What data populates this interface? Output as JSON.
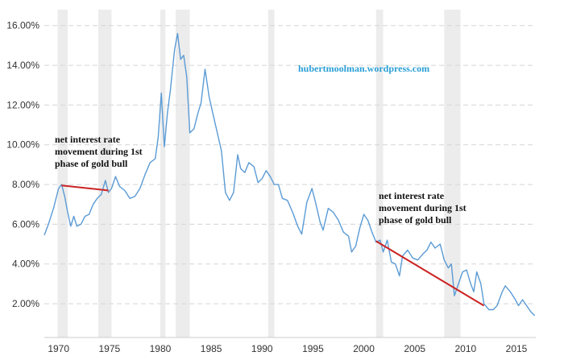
{
  "chart_data": {
    "type": "line",
    "title": "",
    "xlabel": "",
    "ylabel": "",
    "xlim": [
      1968.6,
      2016.9
    ],
    "ylim": [
      0.3,
      16.8
    ],
    "x_ticks": [
      1970,
      1975,
      1980,
      1985,
      1990,
      1995,
      2000,
      2005,
      2010,
      2015
    ],
    "x_tick_labels": [
      "1970",
      "1975",
      "1980",
      "1985",
      "1990",
      "1995",
      "2000",
      "2005",
      "2010",
      "2015"
    ],
    "y_ticks": [
      2,
      4,
      6,
      8,
      10,
      12,
      14,
      16
    ],
    "y_tick_labels": [
      "2.00%",
      "4.00%",
      "6.00%",
      "8.00%",
      "10.00%",
      "12.00%",
      "14.00%",
      "16.00%"
    ],
    "grid": "horizontal dashed",
    "legend": "none",
    "recession_bands": [
      [
        1969.9,
        1970.9
      ],
      [
        1973.9,
        1975.2
      ],
      [
        1980.0,
        1980.5
      ],
      [
        1981.5,
        1982.9
      ],
      [
        1990.6,
        1991.2
      ],
      [
        2001.2,
        2001.9
      ],
      [
        2007.9,
        2009.5
      ]
    ],
    "series": [
      {
        "color": "#5b9bd5",
        "points": [
          [
            1968.6,
            5.45
          ],
          [
            1969.0,
            6.0
          ],
          [
            1969.5,
            6.8
          ],
          [
            1970.0,
            7.8
          ],
          [
            1970.3,
            8.0
          ],
          [
            1970.6,
            7.4
          ],
          [
            1970.9,
            6.6
          ],
          [
            1971.2,
            5.9
          ],
          [
            1971.5,
            6.4
          ],
          [
            1971.8,
            5.9
          ],
          [
            1972.2,
            6.0
          ],
          [
            1972.6,
            6.4
          ],
          [
            1973.0,
            6.5
          ],
          [
            1973.4,
            7.0
          ],
          [
            1973.8,
            7.3
          ],
          [
            1974.2,
            7.5
          ],
          [
            1974.6,
            8.2
          ],
          [
            1974.9,
            7.6
          ],
          [
            1975.2,
            7.8
          ],
          [
            1975.6,
            8.4
          ],
          [
            1976.0,
            7.9
          ],
          [
            1976.5,
            7.7
          ],
          [
            1977.0,
            7.3
          ],
          [
            1977.5,
            7.4
          ],
          [
            1978.0,
            7.8
          ],
          [
            1978.5,
            8.5
          ],
          [
            1979.0,
            9.1
          ],
          [
            1979.5,
            9.3
          ],
          [
            1979.8,
            10.4
          ],
          [
            1980.1,
            12.6
          ],
          [
            1980.4,
            9.9
          ],
          [
            1980.7,
            11.6
          ],
          [
            1981.0,
            12.8
          ],
          [
            1981.4,
            14.8
          ],
          [
            1981.7,
            15.6
          ],
          [
            1982.0,
            14.3
          ],
          [
            1982.3,
            14.5
          ],
          [
            1982.6,
            13.4
          ],
          [
            1982.9,
            10.6
          ],
          [
            1983.3,
            10.8
          ],
          [
            1983.7,
            11.6
          ],
          [
            1984.0,
            12.1
          ],
          [
            1984.4,
            13.8
          ],
          [
            1984.8,
            12.4
          ],
          [
            1985.2,
            11.5
          ],
          [
            1985.6,
            10.6
          ],
          [
            1986.0,
            9.7
          ],
          [
            1986.4,
            7.6
          ],
          [
            1986.8,
            7.2
          ],
          [
            1987.2,
            7.6
          ],
          [
            1987.6,
            9.5
          ],
          [
            1987.9,
            8.8
          ],
          [
            1988.3,
            8.6
          ],
          [
            1988.7,
            9.1
          ],
          [
            1989.2,
            8.9
          ],
          [
            1989.6,
            8.1
          ],
          [
            1990.0,
            8.3
          ],
          [
            1990.4,
            8.7
          ],
          [
            1990.8,
            8.4
          ],
          [
            1991.2,
            8.0
          ],
          [
            1991.6,
            8.0
          ],
          [
            1992.0,
            7.3
          ],
          [
            1992.5,
            7.2
          ],
          [
            1993.0,
            6.6
          ],
          [
            1993.5,
            5.9
          ],
          [
            1993.9,
            5.5
          ],
          [
            1994.4,
            7.1
          ],
          [
            1994.9,
            7.8
          ],
          [
            1995.3,
            7.0
          ],
          [
            1995.7,
            6.1
          ],
          [
            1996.0,
            5.7
          ],
          [
            1996.5,
            6.8
          ],
          [
            1997.0,
            6.6
          ],
          [
            1997.5,
            6.2
          ],
          [
            1998.0,
            5.6
          ],
          [
            1998.5,
            5.4
          ],
          [
            1998.8,
            4.6
          ],
          [
            1999.2,
            4.9
          ],
          [
            1999.6,
            5.8
          ],
          [
            2000.0,
            6.5
          ],
          [
            2000.4,
            6.2
          ],
          [
            2000.8,
            5.6
          ],
          [
            2001.2,
            5.1
          ],
          [
            2001.6,
            5.2
          ],
          [
            2001.9,
            4.6
          ],
          [
            2002.3,
            5.2
          ],
          [
            2002.7,
            4.1
          ],
          [
            2003.1,
            4.0
          ],
          [
            2003.5,
            3.4
          ],
          [
            2003.8,
            4.4
          ],
          [
            2004.3,
            4.7
          ],
          [
            2004.8,
            4.3
          ],
          [
            2005.3,
            4.2
          ],
          [
            2005.8,
            4.5
          ],
          [
            2006.2,
            4.7
          ],
          [
            2006.6,
            5.1
          ],
          [
            2007.0,
            4.8
          ],
          [
            2007.5,
            5.0
          ],
          [
            2007.9,
            4.2
          ],
          [
            2008.3,
            3.8
          ],
          [
            2008.6,
            4.0
          ],
          [
            2008.9,
            2.4
          ],
          [
            2009.3,
            3.0
          ],
          [
            2009.7,
            3.6
          ],
          [
            2010.1,
            3.7
          ],
          [
            2010.5,
            3.0
          ],
          [
            2010.8,
            2.6
          ],
          [
            2011.1,
            3.6
          ],
          [
            2011.5,
            3.0
          ],
          [
            2011.8,
            2.0
          ],
          [
            2012.3,
            1.7
          ],
          [
            2012.7,
            1.7
          ],
          [
            2013.1,
            1.9
          ],
          [
            2013.6,
            2.6
          ],
          [
            2013.9,
            2.9
          ],
          [
            2014.4,
            2.6
          ],
          [
            2014.9,
            2.2
          ],
          [
            2015.2,
            1.9
          ],
          [
            2015.6,
            2.2
          ],
          [
            2016.0,
            1.9
          ],
          [
            2016.4,
            1.6
          ],
          [
            2016.8,
            1.4
          ]
        ]
      }
    ],
    "annotations": [
      {
        "text_lines": [
          "net interest rate",
          "movement during 1st",
          "phase of gold bull"
        ],
        "trend_line": {
          "color": "#cc2222",
          "from": [
            1970.3,
            7.95
          ],
          "to": [
            1974.9,
            7.7
          ]
        }
      },
      {
        "text_lines": [
          "net interest rate",
          "movement during 1st",
          "phase of gold bull"
        ],
        "trend_line": {
          "color": "#cc2222",
          "from": [
            2001.2,
            5.15
          ],
          "to": [
            2011.8,
            1.9
          ]
        }
      }
    ],
    "watermark": "hubertmoolman.wordpress.com"
  }
}
